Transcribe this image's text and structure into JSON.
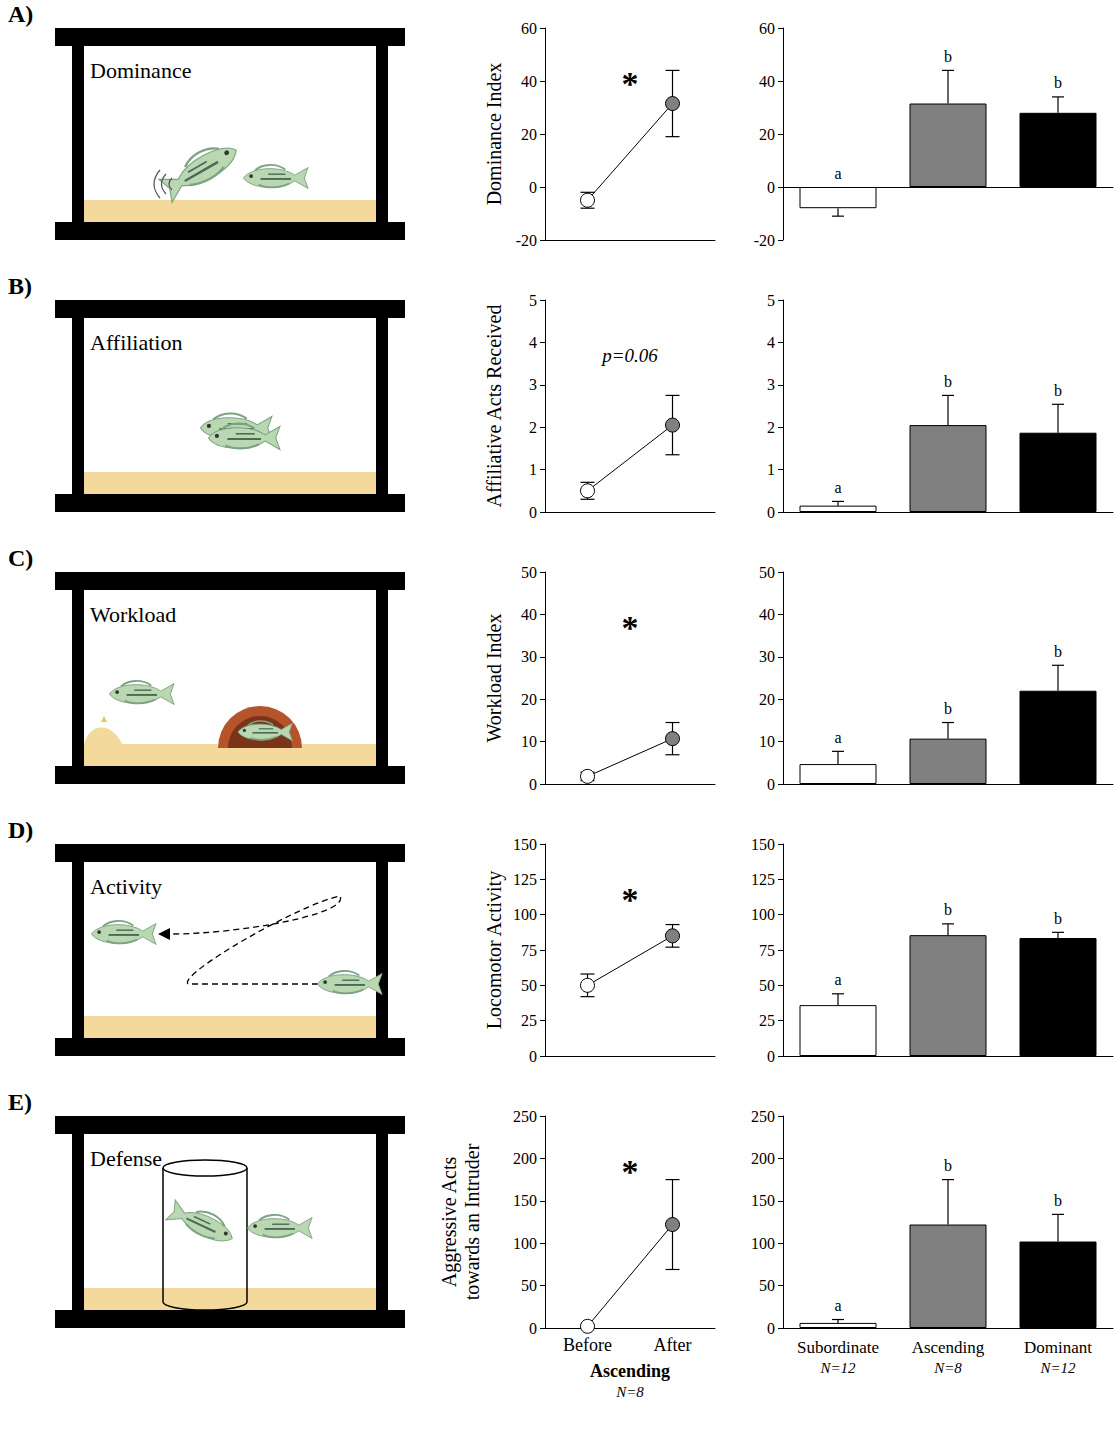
{
  "panels": [
    {
      "letter": "A)",
      "label": "Dominance"
    },
    {
      "letter": "B)",
      "label": "Affiliation"
    },
    {
      "letter": "C)",
      "label": "Workload"
    },
    {
      "letter": "D)",
      "label": "Activity"
    },
    {
      "letter": "E)",
      "label": "Defense"
    }
  ],
  "chart_data": [
    {
      "type": "line",
      "y_label": "Dominance Index",
      "categories": [
        "Before",
        "After"
      ],
      "values": [
        -5,
        31.5
      ],
      "errors": [
        3,
        12.5
      ],
      "colors": [
        "#ffffff",
        "#808080"
      ],
      "marker": "circle",
      "ylim": [
        -20,
        60
      ],
      "yticks": [
        -20,
        0,
        20,
        40,
        60
      ],
      "annotation": "*",
      "tick_labels": "y"
    },
    {
      "type": "bar",
      "categories": [
        "Subordinate",
        "Ascending",
        "Dominant"
      ],
      "values": [
        -8,
        31.5,
        28
      ],
      "errors": [
        3,
        12.5,
        6
      ],
      "colors": [
        "#ffffff",
        "#808080",
        "#000000"
      ],
      "group_letters": [
        "a",
        "b",
        "b"
      ],
      "ylim": [
        -20,
        60
      ],
      "yticks": [
        -20,
        0,
        20,
        40,
        60
      ],
      "tick_labels": "y"
    },
    {
      "type": "line",
      "y_label": "Affiliative Acts Received",
      "categories": [
        "Before",
        "After"
      ],
      "values": [
        0.5,
        2.05
      ],
      "errors": [
        0.2,
        0.7
      ],
      "colors": [
        "#ffffff",
        "#808080"
      ],
      "marker": "circle",
      "ylim": [
        0,
        5
      ],
      "yticks": [
        0,
        1,
        2,
        3,
        4,
        5
      ],
      "annotation": "p=0.06",
      "tick_labels": "y"
    },
    {
      "type": "bar",
      "categories": [
        "Subordinate",
        "Ascending",
        "Dominant"
      ],
      "values": [
        0.15,
        2.05,
        1.87
      ],
      "errors": [
        0.1,
        0.7,
        0.67
      ],
      "colors": [
        "#ffffff",
        "#808080",
        "#000000"
      ],
      "group_letters": [
        "a",
        "b",
        "b"
      ],
      "ylim": [
        0,
        5
      ],
      "yticks": [
        0,
        1,
        2,
        3,
        4,
        5
      ],
      "tick_labels": "y"
    },
    {
      "type": "line",
      "y_label": "Workload Index",
      "categories": [
        "Before",
        "After"
      ],
      "values": [
        1.8,
        10.7
      ],
      "errors": [
        1,
        3.8
      ],
      "colors": [
        "#ffffff",
        "#808080"
      ],
      "marker": "circle",
      "ylim": [
        0,
        50
      ],
      "yticks": [
        0,
        10,
        20,
        30,
        40,
        50
      ],
      "annotation": "*",
      "tick_labels": "y"
    },
    {
      "type": "bar",
      "categories": [
        "Subordinate",
        "Ascending",
        "Dominant"
      ],
      "values": [
        4.7,
        10.7,
        22
      ],
      "errors": [
        3,
        3.8,
        6
      ],
      "colors": [
        "#ffffff",
        "#808080",
        "#000000"
      ],
      "group_letters": [
        "a",
        "b",
        "b"
      ],
      "ylim": [
        0,
        50
      ],
      "yticks": [
        0,
        10,
        20,
        30,
        40,
        50
      ],
      "tick_labels": "y"
    },
    {
      "type": "line",
      "y_label": "Locomotor Activity",
      "categories": [
        "Before",
        "After"
      ],
      "values": [
        50,
        85
      ],
      "errors": [
        8,
        8
      ],
      "colors": [
        "#ffffff",
        "#808080"
      ],
      "marker": "circle",
      "ylim": [
        0,
        150
      ],
      "yticks": [
        0,
        25,
        50,
        75,
        100,
        125,
        150
      ],
      "annotation": "*",
      "tick_labels": "y"
    },
    {
      "type": "bar",
      "categories": [
        "Subordinate",
        "Ascending",
        "Dominant"
      ],
      "values": [
        36,
        85.5,
        83.5
      ],
      "errors": [
        8,
        8,
        4
      ],
      "colors": [
        "#ffffff",
        "#808080",
        "#000000"
      ],
      "group_letters": [
        "a",
        "b",
        "b"
      ],
      "ylim": [
        0,
        150
      ],
      "yticks": [
        0,
        25,
        50,
        75,
        100,
        125,
        150
      ],
      "tick_labels": "y"
    },
    {
      "type": "line",
      "y_label": "Aggressive Acts towards an Intruder",
      "categories": [
        "Before",
        "After"
      ],
      "values": [
        2,
        122
      ],
      "errors": [
        2,
        53
      ],
      "colors": [
        "#ffffff",
        "#808080"
      ],
      "marker": "circle",
      "ylim": [
        0,
        250
      ],
      "yticks": [
        0,
        50,
        100,
        150,
        200,
        250
      ],
      "annotation": "*",
      "x_label": "Ascending",
      "x_note": "N=8"
    },
    {
      "type": "bar",
      "categories": [
        "Subordinate",
        "Ascending",
        "Dominant"
      ],
      "values": [
        6,
        122,
        102
      ],
      "errors": [
        4,
        53,
        32
      ],
      "colors": [
        "#ffffff",
        "#808080",
        "#000000"
      ],
      "group_letters": [
        "a",
        "b",
        "b"
      ],
      "ylim": [
        0,
        250
      ],
      "yticks": [
        0,
        50,
        100,
        150,
        200,
        250
      ],
      "category_notes": [
        "N=12",
        "N=8",
        "N=12"
      ]
    }
  ]
}
